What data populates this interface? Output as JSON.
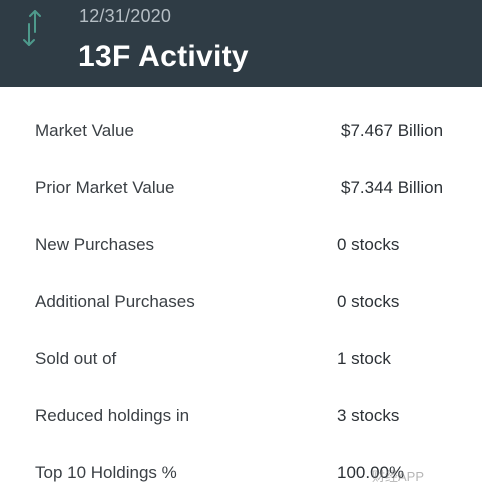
{
  "header": {
    "date": "12/31/2020",
    "title": "13F Activity",
    "icon": "up-down-arrows-icon",
    "background_color": "#2f3c45",
    "icon_color": "#4e9a8c"
  },
  "rows": [
    {
      "label": "Market Value",
      "value": "$7.467 Billion"
    },
    {
      "label": "Prior Market Value",
      "value": "$7.344 Billion"
    },
    {
      "label": "New Purchases",
      "value": "0 stocks"
    },
    {
      "label": "Additional Purchases",
      "value": "0 stocks"
    },
    {
      "label": "Sold out of",
      "value": "1 stock"
    },
    {
      "label": "Reduced holdings in",
      "value": "3 stocks"
    },
    {
      "label": "Top 10 Holdings %",
      "value": "100.00%"
    }
  ],
  "watermark": "财经APP"
}
